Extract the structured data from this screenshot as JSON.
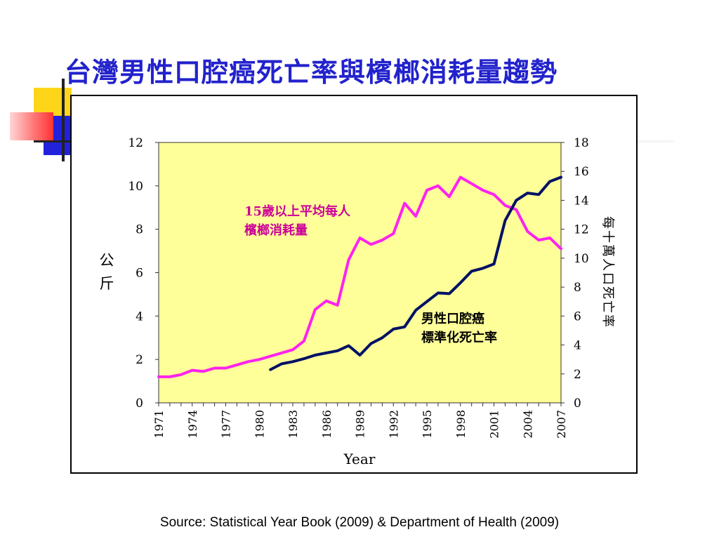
{
  "title": "台灣男性口腔癌死亡率與檳榔消耗量趨勢",
  "source": "Source: Statistical Year Book (2009) & Department of Health (2009)",
  "colors": {
    "title": "#2222cc",
    "plot_bg": "#ffff99",
    "betel_line": "#ff22ee",
    "cancer_line": "#001166",
    "annotation_betel": "#cc0099"
  },
  "chart_data": {
    "type": "line",
    "xlabel": "Year",
    "ylabel_left": "公斤",
    "ylabel_right": "每十萬人口死亡率",
    "ylim_left": [
      0,
      12
    ],
    "yticks_left": [
      "0",
      "2",
      "4",
      "6",
      "8",
      "10",
      "12"
    ],
    "ylim_right": [
      0,
      18
    ],
    "yticks_right": [
      "0",
      "2",
      "4",
      "6",
      "8",
      "10",
      "12",
      "14",
      "16",
      "18"
    ],
    "xlim": [
      1971,
      2007
    ],
    "xticks": [
      "1971",
      "1974",
      "1977",
      "1980",
      "1983",
      "1986",
      "1989",
      "1992",
      "1995",
      "1998",
      "2001",
      "2004",
      "2007"
    ],
    "grid": false,
    "series": [
      {
        "name": "15歲以上平均每人檳榔消耗量",
        "axis": "left",
        "x": [
          1971,
          1972,
          1973,
          1974,
          1975,
          1976,
          1977,
          1978,
          1979,
          1980,
          1981,
          1982,
          1983,
          1984,
          1985,
          1986,
          1987,
          1988,
          1989,
          1990,
          1991,
          1992,
          1993,
          1994,
          1995,
          1996,
          1997,
          1998,
          1999,
          2000,
          2001,
          2002,
          2003,
          2004,
          2005,
          2006,
          2007
        ],
        "values": [
          1.2,
          1.2,
          1.3,
          1.5,
          1.45,
          1.6,
          1.6,
          1.75,
          1.9,
          2.0,
          2.15,
          2.3,
          2.45,
          2.85,
          4.3,
          4.7,
          4.5,
          6.6,
          7.6,
          7.3,
          7.5,
          7.8,
          9.2,
          8.6,
          9.8,
          10.0,
          9.5,
          10.4,
          10.1,
          9.8,
          9.6,
          9.1,
          8.9,
          7.9,
          7.5,
          7.6,
          7.1
        ]
      },
      {
        "name": "男性口腔癌標準化死亡率",
        "axis": "right",
        "x": [
          1981,
          1982,
          1983,
          1984,
          1985,
          1986,
          1987,
          1988,
          1989,
          1990,
          1991,
          1992,
          1993,
          1994,
          1995,
          1996,
          1997,
          1998,
          1999,
          2000,
          2001,
          2002,
          2003,
          2004,
          2005,
          2006,
          2007
        ],
        "values": [
          2.3,
          2.7,
          2.85,
          3.05,
          3.3,
          3.45,
          3.6,
          3.95,
          3.3,
          4.1,
          4.5,
          5.1,
          5.25,
          6.4,
          7.0,
          7.6,
          7.55,
          8.3,
          9.1,
          9.3,
          9.6,
          12.6,
          14.0,
          14.5,
          14.4,
          15.3,
          15.6
        ]
      }
    ],
    "annotations": [
      {
        "id": "betel",
        "lines": [
          "15歲以上平均每人",
          "檳榔消耗量"
        ]
      },
      {
        "id": "cancer",
        "lines": [
          "男性口腔癌",
          "標準化死亡率"
        ]
      }
    ]
  }
}
